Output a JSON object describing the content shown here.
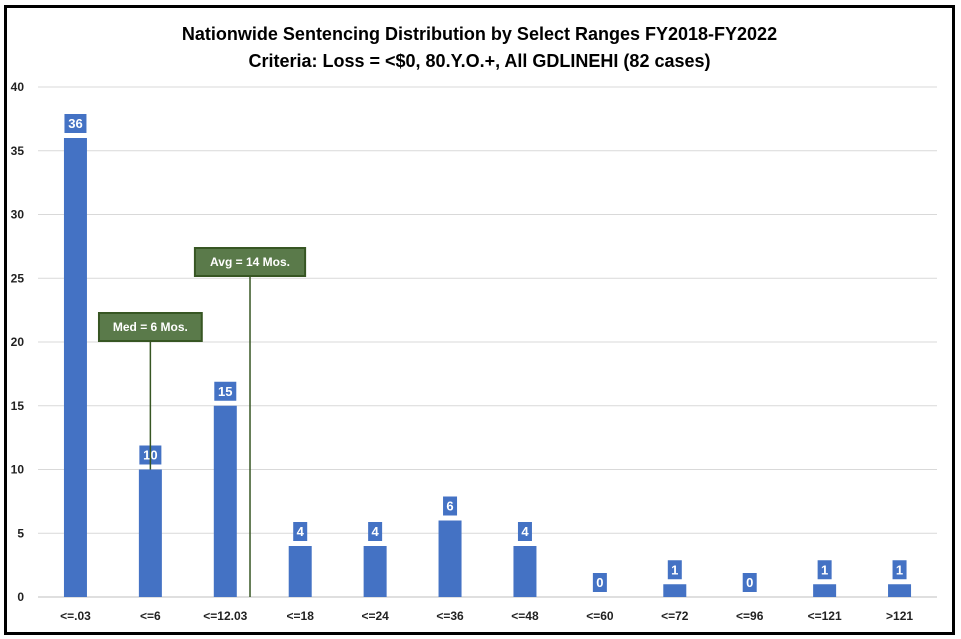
{
  "chart_data": {
    "type": "bar",
    "title": "Nationwide Sentencing Distribution by Select Ranges FY2018-FY2022",
    "subtitle": "Criteria: Loss = <$0, 80.Y.O.+, All GDLINEHI (82 cases)",
    "categories": [
      "<=.03",
      "<=6",
      "<=12.03",
      "<=18",
      "<=24",
      "<=36",
      "<=48",
      "<=60",
      "<=72",
      "<=96",
      "<=121",
      ">121"
    ],
    "values": [
      36,
      10,
      15,
      4,
      4,
      6,
      4,
      0,
      1,
      0,
      1,
      1
    ],
    "ylim": [
      0,
      40
    ],
    "yticks": [
      0,
      5,
      10,
      15,
      20,
      25,
      30,
      35,
      40
    ],
    "grid": true,
    "bar_color": "#4472C4",
    "annotations": [
      {
        "label": "Med = 6 Mos.",
        "x": 6
      },
      {
        "label": "Avg = 14 Mos.",
        "x": 14
      }
    ],
    "annotation_color": "#5A7A4A"
  }
}
